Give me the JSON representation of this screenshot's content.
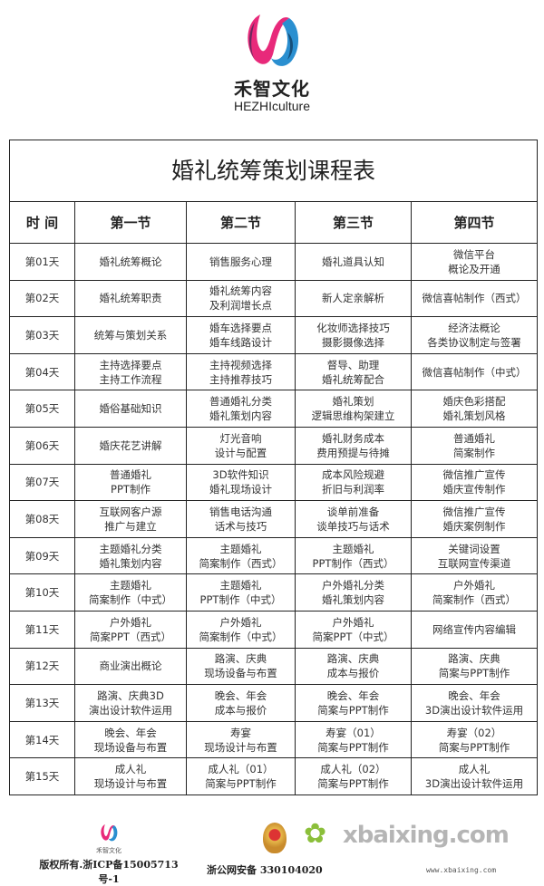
{
  "brand": {
    "name_cn": "禾智文化",
    "name_en": "HEZHIculture"
  },
  "table": {
    "title": "婚礼统筹策划课程表",
    "headers": [
      "时 间",
      "第一节",
      "第二节",
      "第三节",
      "第四节"
    ],
    "rows": [
      [
        "第01天",
        "婚礼统筹概论",
        "销售服务心理",
        "婚礼道具认知",
        "微信平台\n概论及开通"
      ],
      [
        "第02天",
        "婚礼统筹职责",
        "婚礼统筹内容\n及利润增长点",
        "新人定亲解析",
        "微信喜帖制作（西式）"
      ],
      [
        "第03天",
        "统筹与策划关系",
        "婚车选择要点\n婚车线路设计",
        "化妆师选择技巧\n摄影摄像选择",
        "经济法概论\n各类协议制定与签署"
      ],
      [
        "第04天",
        "主持选择要点\n主持工作流程",
        "主持视频选择\n主持推荐技巧",
        "督导、助理\n婚礼统筹配合",
        "微信喜帖制作（中式）"
      ],
      [
        "第05天",
        "婚俗基础知识",
        "普通婚礼分类\n婚礼策划内容",
        "婚礼策划\n逻辑思维构架建立",
        "婚庆色彩搭配\n婚礼策划风格"
      ],
      [
        "第06天",
        "婚庆花艺讲解",
        "灯光音响\n设计与配置",
        "婚礼财务成本\n费用预提与待摊",
        "普通婚礼\n简案制作"
      ],
      [
        "第07天",
        "普通婚礼\nPPT制作",
        "3D软件知识\n婚礼现场设计",
        "成本风险规避\n折旧与利润率",
        "微信推广宣传\n婚庆宣传制作"
      ],
      [
        "第08天",
        "互联网客户源\n推广与建立",
        "销售电话沟通\n话术与技巧",
        "谈单前准备\n谈单技巧与话术",
        "微信推广宣传\n婚庆案例制作"
      ],
      [
        "第09天",
        "主题婚礼分类\n婚礼策划内容",
        "主题婚礼\n简案制作（西式）",
        "主题婚礼\nPPT制作（西式）",
        "关键词设置\n互联网宣传渠道"
      ],
      [
        "第10天",
        "主题婚礼\n简案制作（中式）",
        "主题婚礼\nPPT制作（中式）",
        "户外婚礼分类\n婚礼策划内容",
        "户外婚礼\n简案制作（西式）"
      ],
      [
        "第11天",
        "户外婚礼\n简案PPT（西式）",
        "户外婚礼\n简案制作（中式）",
        "户外婚礼\n简案PPT（中式）",
        "网络宣传内容编辑"
      ],
      [
        "第12天",
        "商业演出概论",
        "路演、庆典\n现场设备与布置",
        "路演、庆典\n成本与报价",
        "路演、庆典\n简案与PPT制作"
      ],
      [
        "第13天",
        "路演、庆典3D\n演出设计软件运用",
        "晚会、年会\n成本与报价",
        "晚会、年会\n简案与PPT制作",
        "晚会、年会\n3D演出设计软件运用"
      ],
      [
        "第14天",
        "晚会、年会\n现场设备与布置",
        "寿宴\n现场设计与布置",
        "寿宴（01）\n简案与PPT制作",
        "寿宴（02）\n简案与PPT制作"
      ],
      [
        "第15天",
        "成人礼\n现场设计与布置",
        "成人礼（01）\n简案与PPT制作",
        "成人礼（02）\n简案与PPT制作",
        "成人礼\n3D演出设计软件运用"
      ]
    ]
  },
  "footer": {
    "copyright": "版权所有.浙ICP备15005713号-1",
    "police": "浙公网安备 330104020",
    "watermark": "xbaixing.com",
    "watermark_url": "www.xbaixing.com"
  }
}
